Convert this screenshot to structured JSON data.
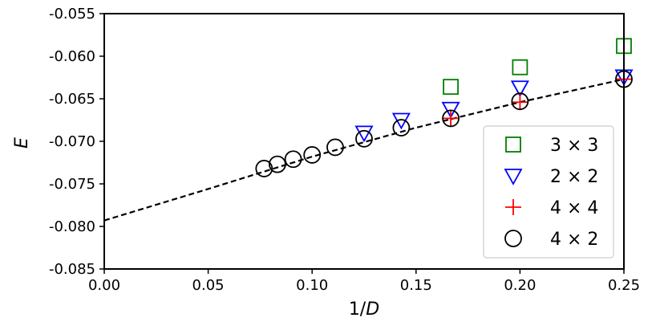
{
  "chart_data": {
    "type": "scatter",
    "xlabel_main": "1/",
    "xlabel_var": "D",
    "ylabel": "E",
    "xlim": [
      0.0,
      0.25
    ],
    "ylim": [
      -0.085,
      -0.055
    ],
    "xticks": [
      "0.00",
      "0.05",
      "0.10",
      "0.15",
      "0.20",
      "0.25"
    ],
    "yticks": [
      "-0.055",
      "-0.060",
      "-0.065",
      "-0.070",
      "-0.075",
      "-0.080",
      "-0.085"
    ],
    "grid": false,
    "legend_position": "lower-right",
    "series": [
      {
        "name": "3 × 3",
        "marker": "square",
        "color": "#008000",
        "points": [
          [
            0.1667,
            -0.0636
          ],
          [
            0.2,
            -0.0613
          ],
          [
            0.25,
            -0.0588
          ]
        ]
      },
      {
        "name": "2 × 2",
        "marker": "triangle-down",
        "color": "#0000ff",
        "points": [
          [
            0.125,
            -0.069
          ],
          [
            0.1429,
            -0.0675
          ],
          [
            0.1667,
            -0.0662
          ],
          [
            0.2,
            -0.0637
          ],
          [
            0.25,
            -0.0624
          ]
        ]
      },
      {
        "name": "4 × 4",
        "marker": "plus",
        "color": "#ff0000",
        "points": [
          [
            0.1667,
            -0.0673
          ],
          [
            0.2,
            -0.0654
          ],
          [
            0.25,
            -0.0627
          ]
        ]
      },
      {
        "name": "4 × 2",
        "marker": "circle",
        "color": "#000000",
        "points": [
          [
            0.0769,
            -0.0732
          ],
          [
            0.0833,
            -0.0727
          ],
          [
            0.0909,
            -0.0721
          ],
          [
            0.1,
            -0.0716
          ],
          [
            0.1111,
            -0.0707
          ],
          [
            0.125,
            -0.0697
          ],
          [
            0.1429,
            -0.0684
          ],
          [
            0.1667,
            -0.0673
          ],
          [
            0.2,
            -0.0653
          ],
          [
            0.25,
            -0.0627
          ]
        ]
      }
    ],
    "fit_line": {
      "style": "dashed",
      "color": "#000000",
      "points": [
        [
          0.0,
          -0.0793
        ],
        [
          0.05,
          -0.0756
        ],
        [
          0.1,
          -0.0718
        ],
        [
          0.15,
          -0.0684
        ],
        [
          0.2,
          -0.0654
        ],
        [
          0.25,
          -0.0627
        ]
      ]
    }
  }
}
